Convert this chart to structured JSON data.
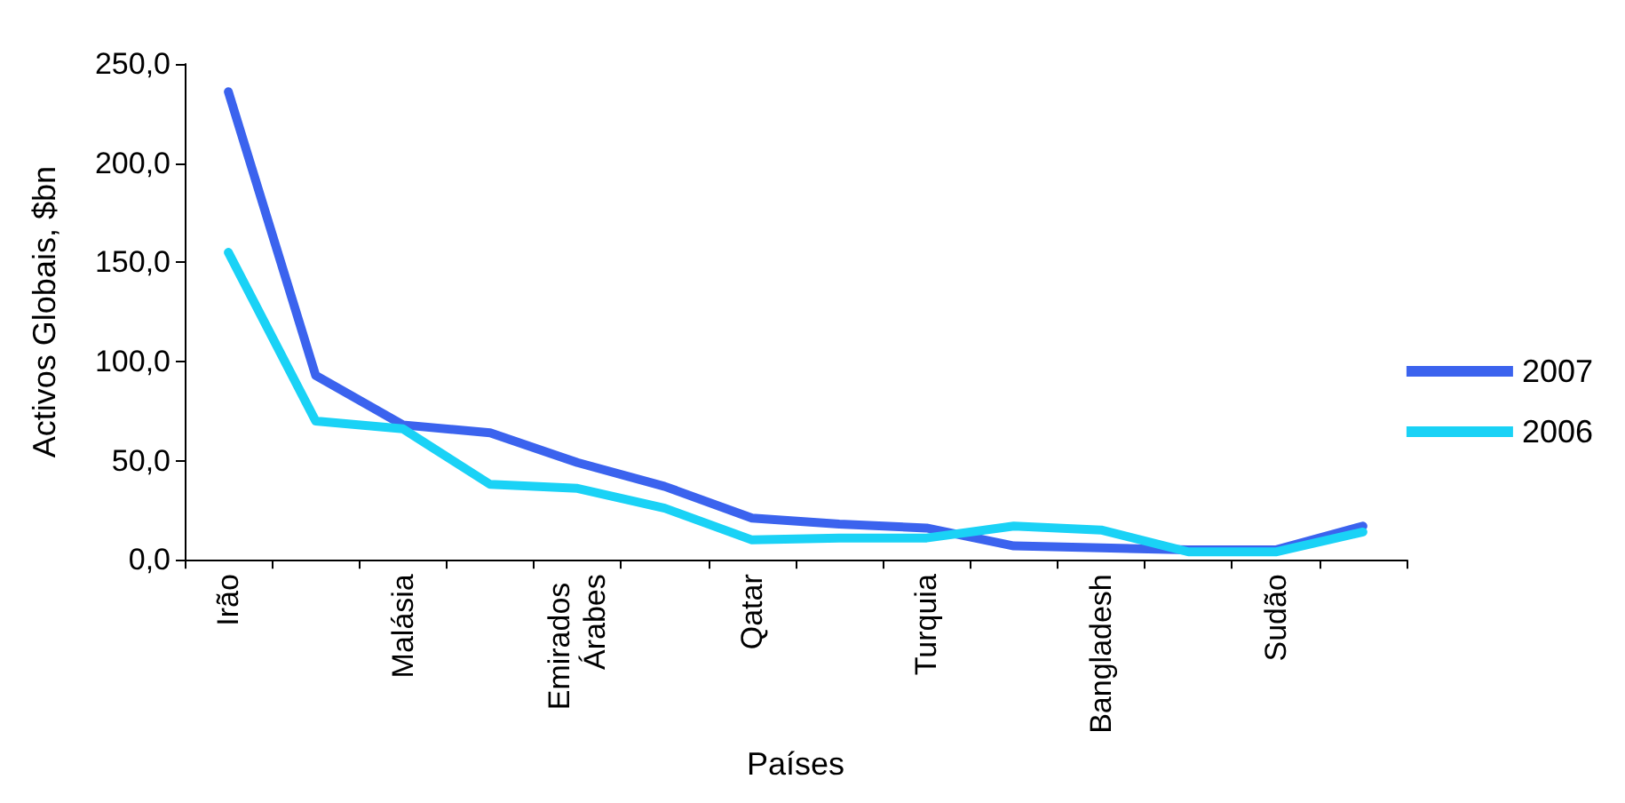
{
  "chart_data": {
    "type": "line",
    "xlabel": "Países",
    "ylabel": "Activos Globais, $bn",
    "categories": [
      "Irão",
      null,
      "Malásia",
      null,
      "Emirados Árabes",
      null,
      "Qatar",
      null,
      "Turquia",
      null,
      "Bangladesh",
      null,
      "Sudão",
      null
    ],
    "series": [
      {
        "name": "2007",
        "color": "#3b63ee",
        "values": [
          236,
          93,
          68,
          64,
          49,
          37,
          21,
          18,
          16,
          7,
          6,
          5,
          5,
          17
        ]
      },
      {
        "name": "2006",
        "color": "#1ad2f6",
        "values": [
          155,
          70,
          66,
          38,
          36,
          26,
          10,
          11,
          11,
          17,
          15,
          4,
          4,
          14
        ]
      }
    ],
    "ylim": [
      0,
      250
    ],
    "yticks": [
      {
        "value": 0,
        "label": "0,0"
      },
      {
        "value": 50,
        "label": "50,0"
      },
      {
        "value": 100,
        "label": "100,0"
      },
      {
        "value": 150,
        "label": "150,0"
      },
      {
        "value": 200,
        "label": "200,0"
      },
      {
        "value": 250,
        "label": "250,0"
      }
    ],
    "grid": false,
    "legend": "right",
    "marker": "none",
    "line_style": "solid"
  }
}
